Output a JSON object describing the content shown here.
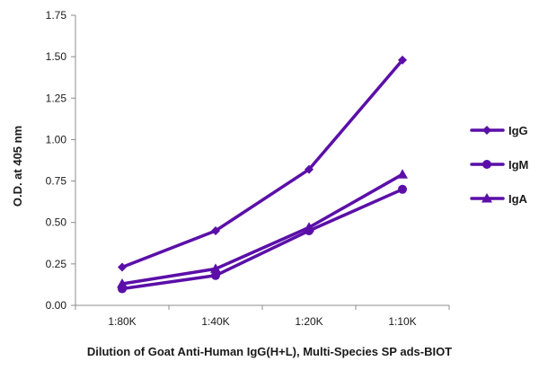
{
  "chart_data": {
    "type": "line",
    "title": "",
    "xlabel": "Dilution of Goat Anti-Human IgG(H+L), Multi-Species SP ads-BIOT",
    "ylabel": "O.D. at 405 nm",
    "categories": [
      "1:80K",
      "1:40K",
      "1:20K",
      "1:10K"
    ],
    "ylim": [
      0,
      1.75
    ],
    "yticks": [
      "0.00",
      "0.25",
      "0.50",
      "0.75",
      "1.00",
      "1.25",
      "1.50",
      "1.75"
    ],
    "grid": false,
    "legend_position": "right",
    "series": [
      {
        "name": "IgG",
        "marker": "diamond",
        "values": [
          0.23,
          0.45,
          0.82,
          1.48
        ]
      },
      {
        "name": "IgM",
        "marker": "circle",
        "values": [
          0.1,
          0.18,
          0.45,
          0.7
        ]
      },
      {
        "name": "IgA",
        "marker": "triangle",
        "values": [
          0.13,
          0.22,
          0.47,
          0.79
        ]
      }
    ],
    "colors": {
      "series": "#5b0fa8",
      "axis": "#8c8c8c",
      "text": "#1a1a1a"
    }
  }
}
